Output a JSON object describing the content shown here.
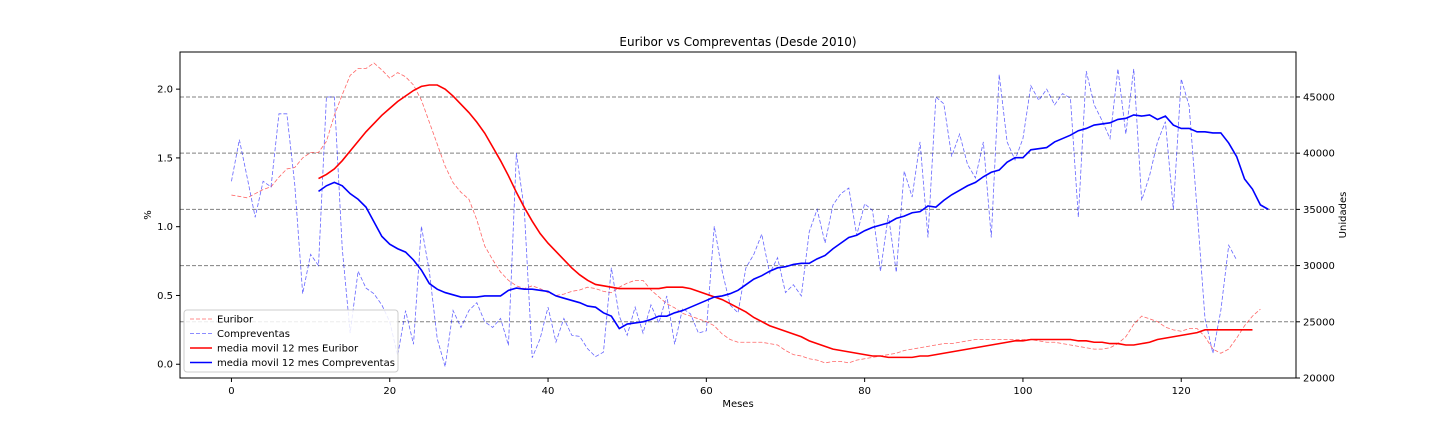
{
  "chart_data": {
    "type": "line",
    "title": "Euribor vs Compreventas (Desde 2010)",
    "xlabel": "Meses",
    "ylabel_left": "%",
    "ylabel_right": "Unidades",
    "xlim": [
      -6.5,
      134.5
    ],
    "ylim_left": [
      -0.1,
      2.27
    ],
    "ylim_right": [
      20000,
      49000
    ],
    "x_ticks": [
      0,
      20,
      40,
      60,
      80,
      100,
      120
    ],
    "y_ticks_left": [
      0.0,
      0.5,
      1.0,
      1.5,
      2.0
    ],
    "y_ticks_right": [
      20000,
      25000,
      30000,
      35000,
      40000,
      45000
    ],
    "grid": "horizontal dashed lines on right axis",
    "legend_position": "lower-left",
    "colors": {
      "euribor": "#ff0000",
      "compreventas": "#0000ff",
      "grid": "#808080"
    },
    "series": [
      {
        "name": "Euribor",
        "axis": "left",
        "style": "dashed-thin",
        "color": "#ff0000",
        "x_start": 0,
        "values": [
          1.23,
          1.22,
          1.21,
          1.24,
          1.27,
          1.29,
          1.36,
          1.42,
          1.43,
          1.5,
          1.54,
          1.54,
          1.62,
          1.81,
          1.96,
          2.1,
          2.15,
          2.15,
          2.19,
          2.14,
          2.08,
          2.12,
          2.09,
          2.03,
          1.92,
          1.76,
          1.6,
          1.44,
          1.32,
          1.25,
          1.2,
          1.05,
          0.86,
          0.76,
          0.67,
          0.61,
          0.57,
          0.55,
          0.57,
          0.55,
          0.52,
          0.5,
          0.51,
          0.53,
          0.54,
          0.56,
          0.55,
          0.53,
          0.52,
          0.56,
          0.59,
          0.61,
          0.61,
          0.54,
          0.49,
          0.44,
          0.41,
          0.37,
          0.35,
          0.33,
          0.31,
          0.28,
          0.22,
          0.18,
          0.16,
          0.16,
          0.16,
          0.16,
          0.15,
          0.14,
          0.1,
          0.07,
          0.06,
          0.04,
          0.03,
          0.01,
          0.02,
          0.02,
          0.01,
          0.03,
          0.04,
          0.05,
          0.06,
          0.07,
          0.08,
          0.1,
          0.11,
          0.12,
          0.13,
          0.14,
          0.15,
          0.15,
          0.16,
          0.17,
          0.18,
          0.18,
          0.18,
          0.18,
          0.18,
          0.18,
          0.18,
          0.18,
          0.17,
          0.16,
          0.16,
          0.15,
          0.14,
          0.13,
          0.12,
          0.11,
          0.11,
          0.12,
          0.15,
          0.2,
          0.29,
          0.35,
          0.33,
          0.31,
          0.27,
          0.25,
          0.24,
          0.26,
          0.26,
          0.2,
          0.11,
          0.08,
          0.11,
          0.19,
          0.28,
          0.35,
          0.4
        ]
      },
      {
        "name": "Compreventas",
        "axis": "right",
        "style": "dashed-thin",
        "color": "#0000ff",
        "x_start": 0,
        "values": [
          37500,
          41200,
          37800,
          34300,
          37500,
          37000,
          43500,
          43500,
          37200,
          27500,
          31000,
          30000,
          45000,
          45000,
          31500,
          24000,
          29500,
          28000,
          27500,
          26500,
          25000,
          22000,
          26000,
          23000,
          33500,
          29500,
          23500,
          21000,
          26000,
          24500,
          26000,
          26700,
          25000,
          24500,
          25300,
          22900,
          40000,
          35000,
          21800,
          23500,
          26300,
          23200,
          25300,
          23800,
          23700,
          22600,
          21900,
          22300,
          29800,
          25500,
          23800,
          26300,
          24000,
          26500,
          24900,
          27300,
          23000,
          26200,
          25700,
          24000,
          24200,
          33500,
          29500,
          26500,
          25800,
          29800,
          31000,
          32800,
          29300,
          30700,
          27600,
          28300,
          27300,
          33000,
          35000,
          32000,
          35400,
          36400,
          36900,
          32700,
          35500,
          34900,
          29500,
          34500,
          29400,
          38400,
          36100,
          41000,
          32500,
          45000,
          44400,
          39700,
          41700,
          39000,
          37800,
          41000,
          32500,
          47000,
          41000,
          39400,
          41300,
          46000,
          44700,
          45700,
          44300,
          45300,
          44900,
          34300,
          47300,
          44300,
          42900,
          41300,
          47500,
          41700,
          47500,
          35800,
          38000,
          41000,
          42800,
          35000,
          46600,
          44200,
          35000,
          25300,
          22200,
          26000,
          31800,
          30500
        ]
      },
      {
        "name": "media movil 12 mes Euribor",
        "axis": "left",
        "style": "solid",
        "color": "#ff0000",
        "x_start": 11,
        "values": [
          1.35,
          1.38,
          1.42,
          1.48,
          1.55,
          1.62,
          1.69,
          1.75,
          1.81,
          1.86,
          1.91,
          1.95,
          1.99,
          2.02,
          2.03,
          2.03,
          2.0,
          1.95,
          1.89,
          1.83,
          1.76,
          1.68,
          1.58,
          1.48,
          1.37,
          1.25,
          1.14,
          1.04,
          0.95,
          0.88,
          0.82,
          0.76,
          0.7,
          0.65,
          0.61,
          0.58,
          0.57,
          0.56,
          0.55,
          0.55,
          0.55,
          0.55,
          0.55,
          0.55,
          0.56,
          0.56,
          0.56,
          0.55,
          0.53,
          0.51,
          0.49,
          0.47,
          0.44,
          0.41,
          0.38,
          0.34,
          0.31,
          0.28,
          0.26,
          0.24,
          0.22,
          0.2,
          0.17,
          0.15,
          0.13,
          0.11,
          0.1,
          0.09,
          0.08,
          0.07,
          0.06,
          0.06,
          0.05,
          0.05,
          0.05,
          0.05,
          0.06,
          0.06,
          0.07,
          0.08,
          0.09,
          0.1,
          0.11,
          0.12,
          0.13,
          0.14,
          0.15,
          0.16,
          0.17,
          0.17,
          0.18,
          0.18,
          0.18,
          0.18,
          0.18,
          0.18,
          0.17,
          0.17,
          0.16,
          0.16,
          0.15,
          0.15,
          0.14,
          0.14,
          0.15,
          0.16,
          0.18,
          0.19,
          0.2,
          0.21,
          0.22,
          0.23,
          0.25,
          0.25,
          0.25,
          0.25,
          0.25,
          0.25,
          0.25
        ]
      },
      {
        "name": "media movil 12 mes Compreventas",
        "axis": "right",
        "style": "solid",
        "color": "#0000ff",
        "x_start": 11,
        "values": [
          36600,
          37100,
          37400,
          37100,
          36400,
          35900,
          35200,
          33900,
          32600,
          31900,
          31500,
          31200,
          30500,
          29600,
          28400,
          27900,
          27600,
          27400,
          27200,
          27200,
          27200,
          27300,
          27300,
          27300,
          27800,
          28000,
          27900,
          27900,
          27800,
          27700,
          27300,
          27100,
          26900,
          26700,
          26400,
          26300,
          25800,
          25500,
          24400,
          24800,
          24900,
          25000,
          25200,
          25500,
          25500,
          25800,
          26000,
          26300,
          26600,
          26900,
          27200,
          27300,
          27500,
          27800,
          28300,
          28800,
          29100,
          29500,
          29800,
          29900,
          30100,
          30200,
          30200,
          30600,
          30900,
          31500,
          32000,
          32500,
          32700,
          33100,
          33400,
          33600,
          33800,
          34200,
          34400,
          34700,
          34800,
          35300,
          35200,
          35800,
          36300,
          36700,
          37100,
          37400,
          37900,
          38300,
          38500,
          39200,
          39600,
          39600,
          40300,
          40400,
          40500,
          41000,
          41300,
          41600,
          42000,
          42200,
          42500,
          42600,
          42700,
          43000,
          43100,
          43400,
          43300,
          43400,
          43000,
          43300,
          42500,
          42200,
          42200,
          41900,
          41900,
          41800,
          41800,
          40900,
          39700,
          37700,
          36800,
          35400,
          35000
        ]
      }
    ]
  }
}
